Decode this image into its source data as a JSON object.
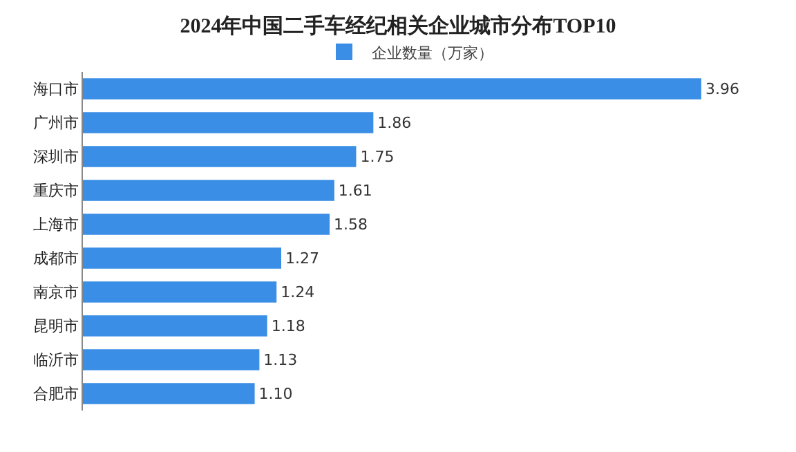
{
  "chart_data": {
    "type": "bar",
    "orientation": "horizontal",
    "title": "2024年中国二手车经纪相关企业城市分布TOP10",
    "categories": [
      "海口市",
      "广州市",
      "深圳市",
      "重庆市",
      "上海市",
      "成都市",
      "南京市",
      "昆明市",
      "临沂市",
      "合肥市"
    ],
    "series": [
      {
        "name": "企业数量（万家）",
        "color": "#3a8ee6",
        "values": [
          3.96,
          1.86,
          1.75,
          1.61,
          1.58,
          1.27,
          1.24,
          1.18,
          1.13,
          1.1
        ],
        "value_labels": [
          "3.96",
          "1.86",
          "1.75",
          "1.61",
          "1.58",
          "1.27",
          "1.24",
          "1.18",
          "1.13",
          "1.10"
        ]
      }
    ],
    "legend": "top",
    "tick_labels": "y"
  }
}
